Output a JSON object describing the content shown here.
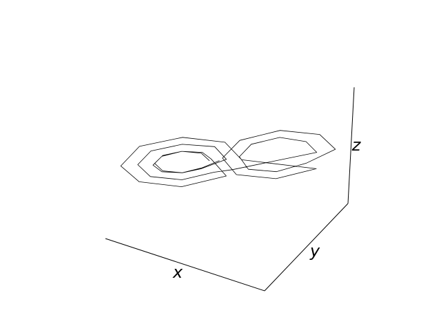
{
  "chart_data": {
    "type": "line3d",
    "xlabel": "x",
    "ylabel": "y",
    "zlabel": "z",
    "color": "#000000",
    "xlim": [
      -20,
      20
    ],
    "ylim": [
      -25,
      25
    ],
    "zlim": [
      0,
      50
    ],
    "x": [
      -3.5,
      -5,
      -8.5,
      -12,
      -13.5,
      -12,
      -8.5,
      -5,
      -0.5,
      -2.8,
      -8.5,
      -14.2,
      -16.5,
      -14.2,
      -8.5,
      -2.8,
      0.5,
      15.5,
      13.5,
      8.5,
      3.5,
      1.5,
      3.5,
      8.5,
      13.5,
      18.5,
      15.6,
      8.5,
      1.4,
      -1.5,
      1.4,
      8.5,
      15.6,
      2.5,
      -0.7,
      -8.5,
      -16.3,
      -19.5,
      -16.3,
      -8.5,
      -0.7,
      -3.5,
      -5,
      -8.5,
      -12,
      -13.5,
      -12,
      -8.5,
      -5,
      -2
    ],
    "y": [
      -4,
      -5.5,
      -9,
      -12,
      -13,
      -11.5,
      -8,
      -5,
      -1,
      -3,
      -9,
      -14,
      -16,
      -13.5,
      -8,
      -2.5,
      0.5,
      15,
      13,
      9,
      4,
      2,
      3,
      8,
      14,
      19,
      16,
      9,
      2,
      -1,
      1,
      8,
      15,
      1,
      -2,
      -9,
      -16,
      -19,
      -15,
      -8,
      0,
      -3,
      -5,
      -9,
      -12.5,
      -14,
      -12,
      -8,
      -4.5,
      -1.5
    ],
    "z": [
      27,
      30.5,
      32,
      30.5,
      27,
      23.5,
      22,
      23.5,
      27,
      32.7,
      35,
      32.7,
      27,
      21.3,
      19,
      21.3,
      22,
      27,
      32,
      34,
      32,
      27,
      22,
      20,
      22,
      27,
      34,
      37,
      34,
      27,
      20,
      17,
      20,
      27,
      35,
      38,
      35,
      27,
      19,
      16,
      19,
      27,
      30.5,
      32,
      30.5,
      27,
      23.5,
      22,
      23.5,
      26
    ]
  }
}
